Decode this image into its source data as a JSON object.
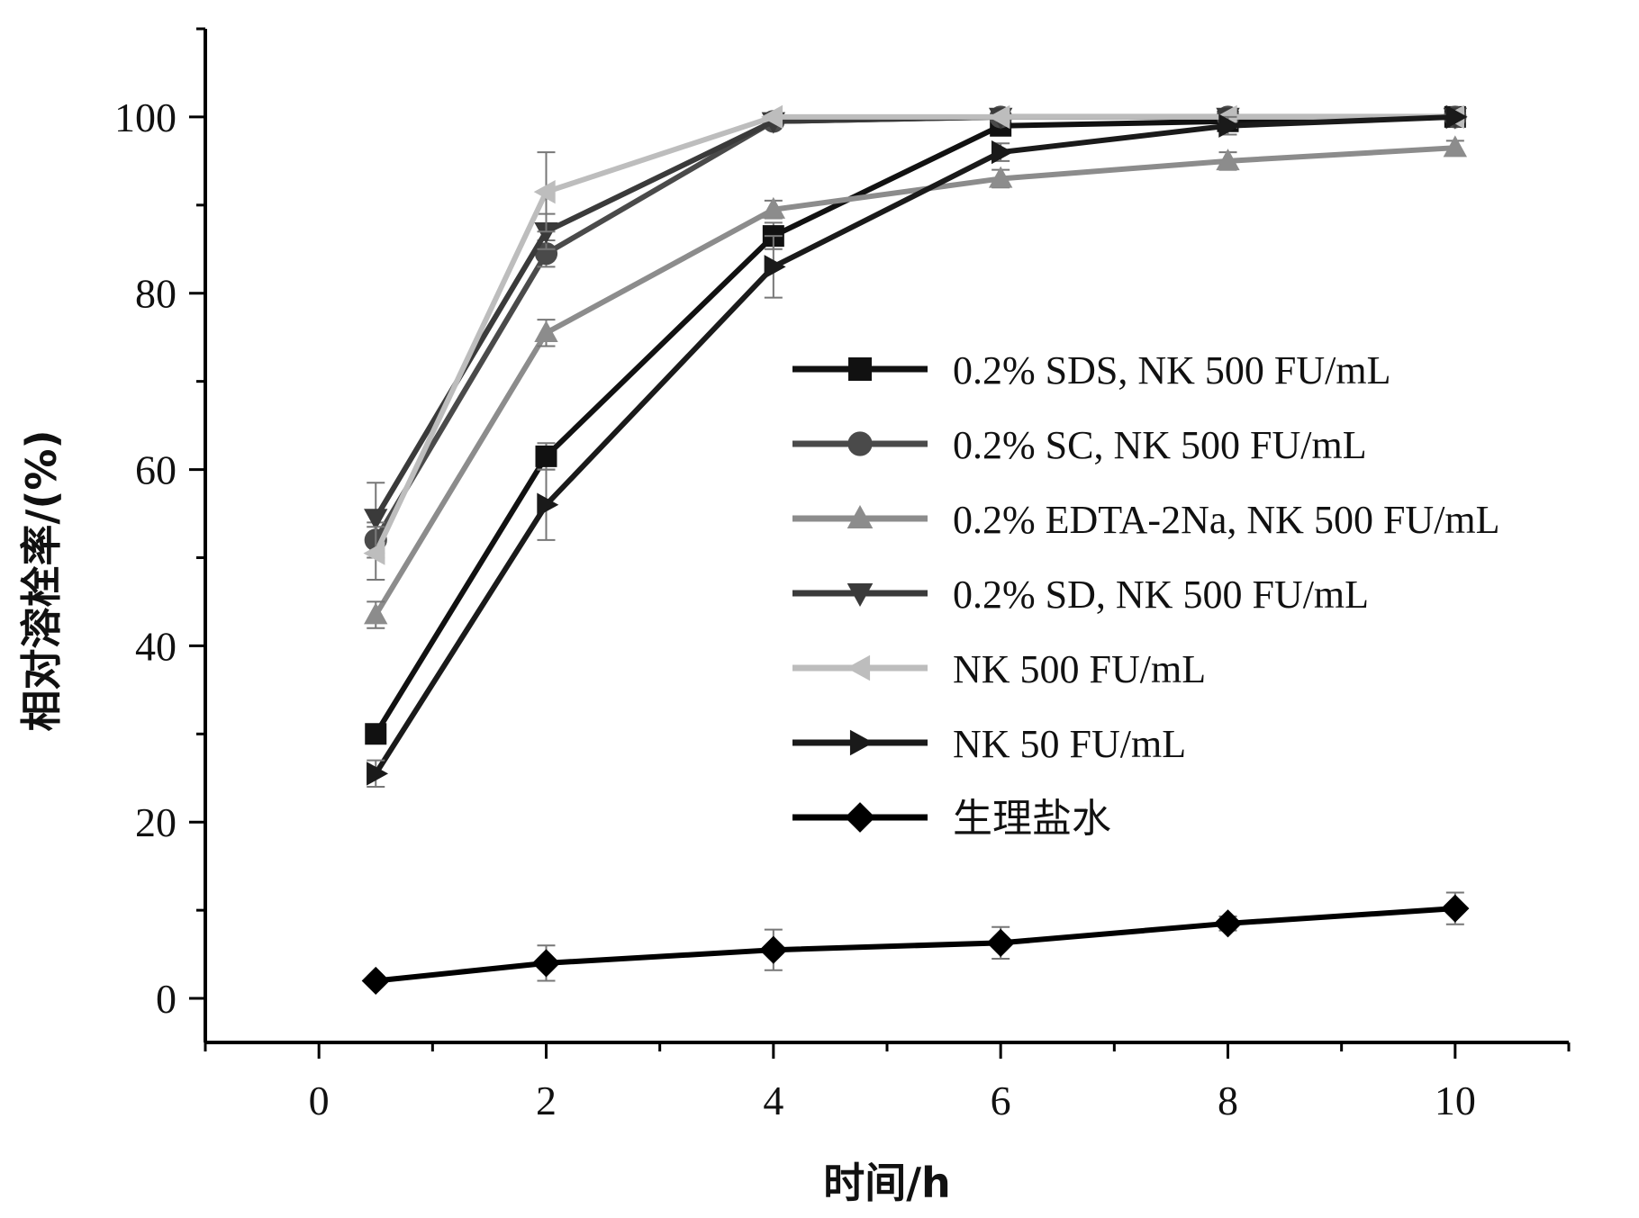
{
  "chart_data": {
    "type": "line",
    "title": "",
    "xlabel": "时间/h",
    "ylabel": "相对溶栓率/(%)",
    "xlim": [
      -1,
      11
    ],
    "ylim": [
      -5,
      110
    ],
    "xticks": [
      0,
      2,
      4,
      6,
      8,
      10
    ],
    "yticks": [
      0,
      20,
      40,
      60,
      80,
      100
    ],
    "grid": false,
    "legend_position": "center-right",
    "x": [
      0.5,
      2,
      4,
      6,
      8,
      10
    ],
    "series": [
      {
        "name": "0.2% SDS, NK 500 FU/mL",
        "marker": "square",
        "color": "#111111",
        "values": [
          30,
          61.5,
          86.5,
          99,
          99.5,
          100
        ],
        "errors": [
          1,
          1.5,
          1.5,
          0.5,
          0.5,
          0.3
        ]
      },
      {
        "name": "0.2% SC, NK 500 FU/mL",
        "marker": "circle",
        "color": "#4a4a4a",
        "values": [
          52,
          84.5,
          99.5,
          100,
          100,
          100
        ],
        "errors": [
          2,
          1.5,
          0.5,
          0.3,
          0.3,
          0.3
        ]
      },
      {
        "name": "0.2% EDTA-2Na, NK 500 FU/mL",
        "marker": "triangle-up",
        "color": "#8c8c8c",
        "values": [
          43.5,
          75.5,
          89.5,
          93,
          95,
          96.5
        ],
        "errors": [
          1.5,
          1.5,
          1,
          1,
          1,
          0.8
        ]
      },
      {
        "name": "0.2% SD, NK 500 FU/mL",
        "marker": "triangle-down",
        "color": "#3a3a3a",
        "values": [
          54.5,
          87,
          99.5,
          100,
          100,
          100
        ],
        "errors": [
          4,
          2,
          0.5,
          0.3,
          0.3,
          0.3
        ]
      },
      {
        "name": "NK 500 FU/mL",
        "marker": "triangle-left",
        "color": "#bdbdbd",
        "values": [
          50.5,
          91.5,
          100,
          100,
          100,
          100
        ],
        "errors": [
          3,
          4.5,
          0.5,
          0.3,
          0.3,
          0.3
        ]
      },
      {
        "name": "NK 50 FU/mL",
        "marker": "triangle-right",
        "color": "#1a1a1a",
        "values": [
          25.5,
          56,
          83,
          96,
          99,
          100
        ],
        "errors": [
          1.5,
          4,
          3.5,
          1,
          1,
          0.5
        ]
      },
      {
        "name": "生理盐水",
        "marker": "diamond",
        "color": "#000000",
        "values": [
          2,
          4,
          5.5,
          6.3,
          8.5,
          10.2
        ],
        "errors": [
          0.5,
          2,
          2.3,
          1.8,
          0.8,
          1.8
        ]
      }
    ]
  }
}
